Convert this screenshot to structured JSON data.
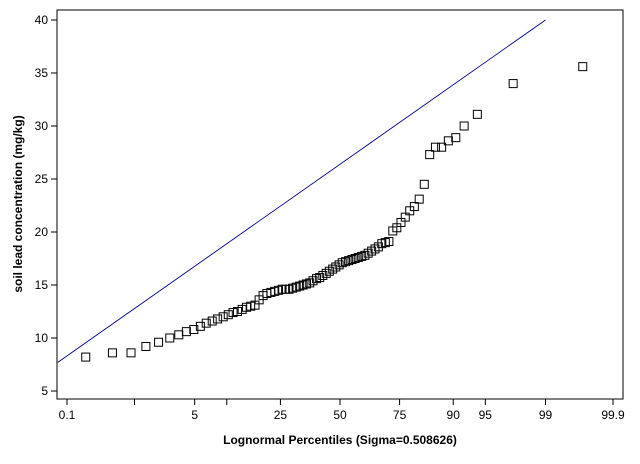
{
  "chart_data": {
    "type": "scatter",
    "title": "",
    "xlabel": "Lognormal Percentiles (Sigma=0.508626)",
    "ylabel": "soil lead concentration (mg/kg)",
    "x_scale": "normal-probability",
    "xlim": [
      0.1,
      99.9
    ],
    "ylim": [
      5,
      40
    ],
    "grid": false,
    "x_ticks": [
      0.1,
      1,
      5,
      10,
      25,
      50,
      75,
      90,
      95,
      99,
      99.9
    ],
    "x_tick_labels": [
      "0.1",
      "",
      "5",
      "",
      "25",
      "50",
      "75",
      "90",
      "95",
      "99",
      "99.9"
    ],
    "y_ticks": [
      5,
      10,
      15,
      20,
      25,
      30,
      35,
      40
    ],
    "y_tick_labels": [
      "5",
      "10",
      "15",
      "20",
      "25",
      "30",
      "35",
      "40"
    ],
    "colors": {
      "fit_line": "#00008b",
      "markers": "#000000",
      "frame": "#000000"
    },
    "marker": "open-square",
    "fit_line": {
      "x": [
        0.07,
        99.0
      ],
      "y": [
        7.7,
        40.0
      ]
    },
    "series": [
      {
        "values": [
          [
            0.2,
            8.2
          ],
          [
            0.5,
            8.6
          ],
          [
            0.9,
            8.6
          ],
          [
            1.4,
            9.2
          ],
          [
            2.0,
            9.6
          ],
          [
            2.7,
            10.0
          ],
          [
            3.4,
            10.3
          ],
          [
            4.1,
            10.6
          ],
          [
            4.9,
            10.8
          ],
          [
            5.7,
            11.1
          ],
          [
            6.5,
            11.4
          ],
          [
            7.4,
            11.6
          ],
          [
            8.3,
            11.8
          ],
          [
            9.3,
            12.0
          ],
          [
            10.3,
            12.2
          ],
          [
            11.3,
            12.4
          ],
          [
            12.3,
            12.5
          ],
          [
            13.4,
            12.7
          ],
          [
            14.5,
            12.9
          ],
          [
            15.6,
            13.0
          ],
          [
            16.8,
            13.1
          ],
          [
            18.0,
            13.6
          ],
          [
            19.2,
            14.0
          ],
          [
            20.4,
            14.2
          ],
          [
            21.7,
            14.3
          ],
          [
            23.0,
            14.4
          ],
          [
            24.3,
            14.5
          ],
          [
            25.6,
            14.6
          ],
          [
            26.9,
            14.6
          ],
          [
            28.2,
            14.6
          ],
          [
            29.6,
            14.7
          ],
          [
            31.0,
            14.8
          ],
          [
            32.4,
            14.9
          ],
          [
            33.8,
            15.0
          ],
          [
            35.2,
            15.1
          ],
          [
            36.6,
            15.2
          ],
          [
            38.0,
            15.4
          ],
          [
            39.5,
            15.6
          ],
          [
            40.9,
            15.7
          ],
          [
            42.3,
            15.9
          ],
          [
            43.8,
            16.1
          ],
          [
            45.2,
            16.3
          ],
          [
            46.7,
            16.5
          ],
          [
            48.1,
            16.7
          ],
          [
            49.6,
            16.9
          ],
          [
            51.0,
            17.1
          ],
          [
            52.5,
            17.2
          ],
          [
            53.9,
            17.3
          ],
          [
            55.4,
            17.4
          ],
          [
            56.8,
            17.5
          ],
          [
            58.2,
            17.6
          ],
          [
            59.7,
            17.7
          ],
          [
            61.1,
            17.8
          ],
          [
            62.5,
            18.0
          ],
          [
            64.0,
            18.2
          ],
          [
            65.4,
            18.4
          ],
          [
            66.8,
            18.6
          ],
          [
            68.2,
            18.9
          ],
          [
            69.6,
            19.0
          ],
          [
            71.0,
            19.1
          ],
          [
            72.5,
            20.1
          ],
          [
            74.0,
            20.4
          ],
          [
            75.5,
            20.9
          ],
          [
            77.0,
            21.4
          ],
          [
            78.5,
            22.0
          ],
          [
            80.0,
            22.4
          ],
          [
            81.5,
            23.1
          ],
          [
            83.0,
            24.5
          ],
          [
            84.5,
            27.3
          ],
          [
            86.0,
            28.0
          ],
          [
            87.5,
            28.0
          ],
          [
            89.0,
            28.6
          ],
          [
            90.5,
            28.9
          ],
          [
            92.0,
            30.0
          ],
          [
            94.0,
            31.1
          ],
          [
            97.5,
            34.0
          ],
          [
            99.7,
            35.6
          ]
        ]
      }
    ]
  }
}
